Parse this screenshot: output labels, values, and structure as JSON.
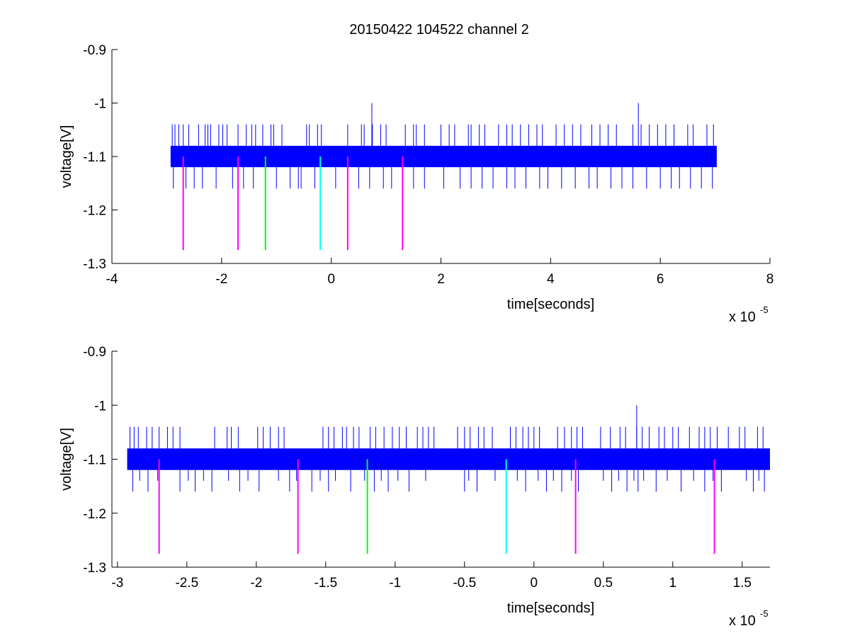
{
  "figure": {
    "title": "20150422 104522 channel 2"
  },
  "colors": {
    "signal": "#0000ff",
    "marker_magenta": "#ff00ff",
    "marker_green": "#00ff00",
    "marker_cyan": "#00ffff",
    "axes": "#000000",
    "background": "#ffffff"
  },
  "chart_data": [
    {
      "type": "line",
      "title": "20150422 104522 channel 2",
      "xlabel": "time[seconds]",
      "ylabel": "voltage[V]",
      "x_exponent_base": "x 10",
      "x_exponent_power": "-5",
      "xlim": [
        -4,
        8
      ],
      "ylim": [
        -1.3,
        -0.9
      ],
      "x_ticks": [
        -4,
        -2,
        0,
        2,
        4,
        6,
        8
      ],
      "x_tick_labels": [
        "-4",
        "-2",
        "0",
        "2",
        "4",
        "6",
        "8"
      ],
      "y_ticks": [
        -0.9,
        -1.0,
        -1.1,
        -1.2,
        -1.3
      ],
      "y_tick_labels": [
        "-0.9",
        "-1",
        "-1.1",
        "-1.2",
        "-1.3"
      ],
      "grid": false,
      "series": [
        {
          "kind": "signal",
          "x_range": [
            -2.93,
            7.03
          ],
          "band": [
            -1.12,
            -1.08
          ],
          "spike_levels_up": [
            -1.04,
            -1.0
          ],
          "spike_levels_down": [
            -1.16
          ],
          "spikes_up_x": [
            -2.9,
            -2.85,
            -2.78,
            -2.7,
            -2.6,
            -2.42,
            -2.3,
            -2.25,
            -2.2,
            -2.05,
            -1.98,
            -1.9,
            -1.7,
            -1.55,
            -1.45,
            -1.38,
            -1.25,
            -1.1,
            -1.05,
            -0.9,
            -0.45,
            -0.4,
            -0.25,
            -0.18,
            0.3,
            0.55,
            0.6,
            0.75,
            0.9,
            1.0,
            1.35,
            1.5,
            1.55,
            1.7,
            2.0,
            2.15,
            2.25,
            2.5,
            2.55,
            2.7,
            2.8,
            3.05,
            3.2,
            3.3,
            3.45,
            3.6,
            3.75,
            3.85,
            4.1,
            4.25,
            4.4,
            4.55,
            4.75,
            4.9,
            5.05,
            5.2,
            5.5,
            5.65,
            5.8,
            5.95,
            6.1,
            6.25,
            6.5,
            6.6,
            6.85,
            6.97
          ],
          "spikes_big_up_x": [
            0.74,
            5.6
          ],
          "spikes_down_x": [
            -2.88,
            -2.65,
            -2.5,
            -2.35,
            -2.1,
            -1.8,
            -1.6,
            -1.42,
            -1.2,
            -1.0,
            -0.75,
            -0.6,
            -0.55,
            -0.3,
            0.08,
            0.5,
            0.7,
            0.95,
            1.1,
            1.5,
            1.7,
            2.05,
            2.35,
            2.55,
            2.75,
            2.95,
            3.2,
            3.35,
            3.55,
            3.8,
            3.95,
            4.2,
            4.45,
            4.7,
            4.85,
            5.1,
            5.3,
            5.5,
            5.75,
            6.0,
            6.2,
            6.35,
            6.55,
            6.75,
            6.95
          ]
        },
        {
          "kind": "markers",
          "y_range": [
            -1.275,
            -1.1
          ],
          "x": [
            -2.7,
            -1.7,
            -1.2,
            -0.2,
            0.3,
            1.3
          ],
          "colors": [
            "magenta",
            "magenta",
            "green",
            "cyan",
            "magenta",
            "magenta"
          ]
        }
      ]
    },
    {
      "type": "line",
      "title": "",
      "xlabel": "time[seconds]",
      "ylabel": "voltage[V]",
      "x_exponent_base": "x 10",
      "x_exponent_power": "-5",
      "xlim": [
        -3.04,
        1.7
      ],
      "ylim": [
        -1.3,
        -0.9
      ],
      "x_ticks": [
        -3,
        -2.5,
        -2,
        -1.5,
        -1,
        -0.5,
        0,
        0.5,
        1,
        1.5
      ],
      "x_tick_labels": [
        "-3",
        "-2.5",
        "-2",
        "-1.5",
        "-1",
        "-0.5",
        "0",
        "0.5",
        "1",
        "1.5"
      ],
      "y_ticks": [
        -0.9,
        -1.0,
        -1.1,
        -1.2,
        -1.3
      ],
      "y_tick_labels": [
        "-0.9",
        "-1",
        "-1.1",
        "-1.2",
        "-1.3"
      ],
      "grid": false,
      "series": [
        {
          "kind": "signal",
          "x_range": [
            -2.93,
            1.7
          ],
          "band": [
            -1.12,
            -1.08
          ],
          "spike_levels_up": [
            -1.04,
            -1.0
          ],
          "spike_levels_down": [
            -1.16,
            -1.14
          ],
          "spikes_up_x": [
            -2.91,
            -2.88,
            -2.85,
            -2.79,
            -2.75,
            -2.7,
            -2.64,
            -2.6,
            -2.55,
            -2.3,
            -2.21,
            -2.18,
            -2.13,
            -1.99,
            -1.95,
            -1.9,
            -1.84,
            -1.8,
            -1.52,
            -1.48,
            -1.44,
            -1.38,
            -1.35,
            -1.3,
            -1.26,
            -1.18,
            -1.14,
            -1.08,
            -1.02,
            -0.97,
            -0.92,
            -0.84,
            -0.8,
            -0.76,
            -0.72,
            -0.55,
            -0.5,
            -0.46,
            -0.4,
            -0.36,
            -0.3,
            -0.17,
            -0.13,
            -0.08,
            -0.04,
            0.0,
            0.04,
            0.17,
            0.22,
            0.27,
            0.31,
            0.35,
            0.48,
            0.55,
            0.62,
            0.66,
            0.74,
            0.78,
            0.83,
            0.9,
            0.94,
            1.0,
            1.04,
            1.12,
            1.19,
            1.23,
            1.27,
            1.32,
            1.4,
            1.48,
            1.52,
            1.61,
            1.65
          ],
          "spikes_big_up_x": [
            0.74
          ],
          "spikes_down_x": [
            -2.89,
            -2.84,
            -2.78,
            -2.71,
            -2.55,
            -2.49,
            -2.44,
            -2.38,
            -2.32,
            -2.2,
            -2.12,
            -2.06,
            -1.98,
            -1.84,
            -1.76,
            -1.71,
            -1.6,
            -1.54,
            -1.48,
            -1.43,
            -1.32,
            -1.22,
            -1.15,
            -1.1,
            -1.05,
            -0.98,
            -0.9,
            -0.78,
            -0.5,
            -0.47,
            -0.41,
            -0.28,
            -0.2,
            -0.12,
            -0.06,
            0.03,
            0.09,
            0.14,
            0.2,
            0.27,
            0.32,
            0.5,
            0.56,
            0.61,
            0.67,
            0.72,
            0.75,
            0.79,
            0.88,
            0.96,
            1.06,
            1.15,
            1.23,
            1.29,
            1.35,
            1.53,
            1.58,
            1.62,
            1.66
          ]
        },
        {
          "kind": "markers",
          "y_range": [
            -1.275,
            -1.1
          ],
          "x": [
            -2.7,
            -1.7,
            -1.2,
            -0.2,
            0.3,
            1.3
          ],
          "colors": [
            "magenta",
            "magenta",
            "green",
            "cyan",
            "magenta",
            "magenta"
          ]
        }
      ]
    }
  ]
}
